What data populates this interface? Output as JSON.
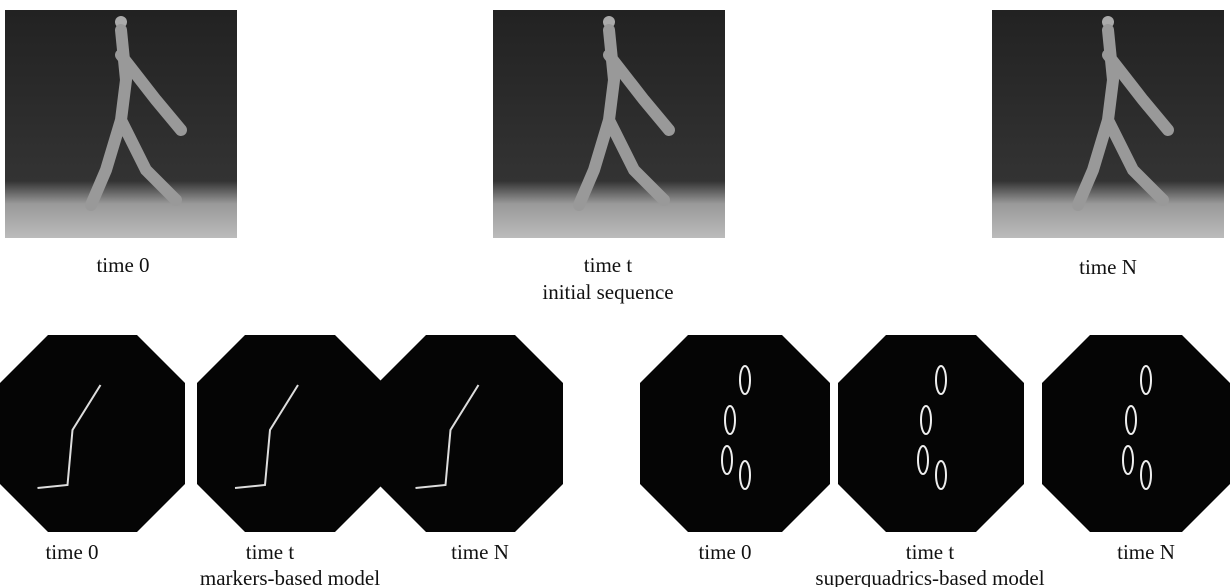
{
  "top": {
    "frames": [
      "time 0",
      "time t",
      "time N"
    ],
    "caption": "initial sequence"
  },
  "markers": {
    "frames": [
      "time 0",
      "time t",
      "time N"
    ],
    "caption": "markers-based model"
  },
  "superquadrics": {
    "frames": [
      "time 0",
      "time t",
      "time N"
    ],
    "caption": "superquadrics-based model"
  }
}
